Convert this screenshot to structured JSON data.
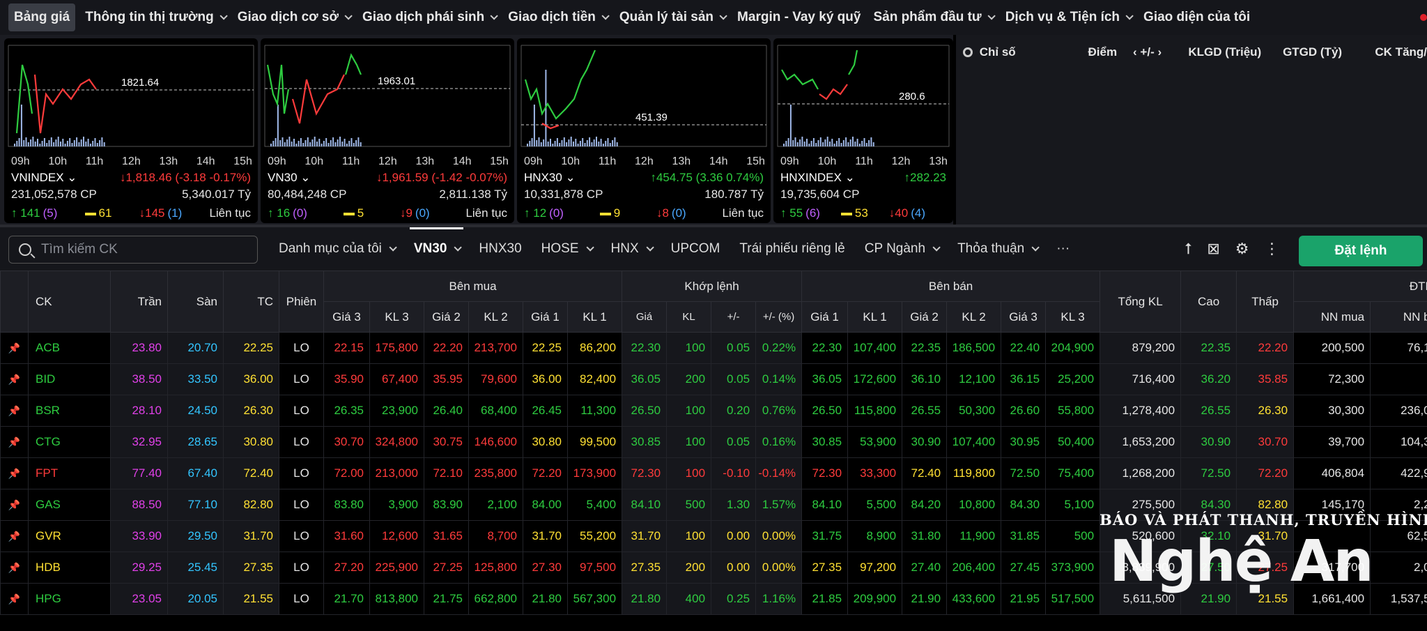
{
  "nav": {
    "items": [
      {
        "label": "Bảng giá",
        "active": true,
        "chevron": false
      },
      {
        "label": "Thông tin thị trường",
        "chevron": true
      },
      {
        "label": "Giao dịch cơ sở",
        "chevron": true
      },
      {
        "label": "Giao dịch phái sinh",
        "chevron": true
      },
      {
        "label": "Giao dịch tiền",
        "chevron": true
      },
      {
        "label": "Quản lý tài sản",
        "chevron": true
      },
      {
        "label": "Margin - Vay ký quỹ",
        "chevron": false
      },
      {
        "label": "Sản phẩm đầu tư",
        "chevron": true
      },
      {
        "label": "Dịch vụ & Tiện ích",
        "chevron": true
      },
      {
        "label": "Giao diện của tôi",
        "chevron": false
      }
    ]
  },
  "indices": [
    {
      "name": "VNINDEX ⌄",
      "ref_label": "1821.64",
      "times": [
        "09h",
        "10h",
        "11h",
        "12h",
        "13h",
        "14h",
        "15h"
      ],
      "change_text": "1,818.46 (-3.18 -0.17%)",
      "direction": "down",
      "volume": "231,052,578 CP",
      "value": "5,340.017 Tỷ",
      "adv": "141",
      "adv_ceil": "(5)",
      "unch": "61",
      "dec": "145",
      "dec_floor": "(1)",
      "status": "Liên tục"
    },
    {
      "name": "VN30 ⌄",
      "ref_label": "1963.01",
      "times": [
        "09h",
        "10h",
        "11h",
        "12h",
        "13h",
        "14h",
        "15h"
      ],
      "change_text": "1,961.59 (-1.42 -0.07%)",
      "direction": "down",
      "volume": "80,484,248 CP",
      "value": "2,811.138 Tỷ",
      "adv": "16",
      "adv_ceil": "(0)",
      "unch": "5",
      "dec": "9",
      "dec_floor": "(0)",
      "status": "Liên tục"
    },
    {
      "name": "HNX30 ⌄",
      "ref_label": "451.39",
      "times": [
        "09h",
        "10h",
        "11h",
        "12h",
        "13h",
        "14h",
        "15h"
      ],
      "change_text": "454.75 (3.36 0.74%)",
      "direction": "up",
      "volume": "10,331,878 CP",
      "value": "180.787 Tỷ",
      "adv": "12",
      "adv_ceil": "(0)",
      "unch": "9",
      "dec": "8",
      "dec_floor": "(0)",
      "status": "Liên tục"
    },
    {
      "name": "HNXINDEX ⌄",
      "ref_label": "280.6",
      "times": [
        "09h",
        "10h",
        "11h",
        "12h",
        "13h"
      ],
      "change_text": "282.23",
      "direction": "up",
      "volume": "19,735,604 CP",
      "value": "",
      "adv": "55",
      "adv_ceil": "(6)",
      "unch": "53",
      "dec": "40",
      "dec_floor": "(4)",
      "status": ""
    }
  ],
  "market_panel": {
    "title": "Chỉ số",
    "cols": [
      "Điểm",
      "‹ +/- ›",
      "KLGD (Triệu)",
      "GTGD (Tỷ)",
      "CK Tăng/"
    ]
  },
  "toolbar": {
    "search_placeholder": "Tìm kiếm CK",
    "tabs": [
      {
        "label": "Danh mục của tôi",
        "chevron": true
      },
      {
        "label": "VN30",
        "chevron": true,
        "active": true
      },
      {
        "label": "HNX30",
        "chevron": false
      },
      {
        "label": "HOSE",
        "chevron": true
      },
      {
        "label": "HNX",
        "chevron": true
      },
      {
        "label": "UPCOM",
        "chevron": false
      },
      {
        "label": "Trái phiếu riêng lẻ",
        "chevron": false
      },
      {
        "label": "CP Ngành",
        "chevron": true
      },
      {
        "label": "Thỏa thuận",
        "chevron": true
      },
      {
        "label": "···",
        "chevron": false
      }
    ],
    "order_label": "Đặt lệnh"
  },
  "board": {
    "headers": {
      "ck": "CK",
      "tran": "Trần",
      "san": "Sàn",
      "tc": "TC",
      "phien": "Phiên",
      "ben_mua": "Bên mua",
      "khop_lenh": "Khớp lệnh",
      "ben_ban": "Bên bán",
      "tong_kl": "Tổng KL",
      "cao": "Cao",
      "thap": "Thấp",
      "dtnn": "ĐTNN",
      "buy_cols": [
        "Giá 3",
        "KL 3",
        "Giá 2",
        "KL 2",
        "Giá 1",
        "KL 1"
      ],
      "match_cols": [
        "Giá",
        "KL",
        "+/-",
        "+/- (%)"
      ],
      "sell_cols": [
        "Giá 1",
        "KL 1",
        "Giá 2",
        "KL 2",
        "Giá 3",
        "KL 3"
      ],
      "nn_cols": [
        "NN mua",
        "NN bá"
      ]
    },
    "rows": [
      {
        "ck": "ACB",
        "c": "up",
        "tran": "23.80",
        "san": "20.70",
        "tc": "22.25",
        "phien": "LO",
        "buy": [
          [
            "22.15",
            "down"
          ],
          [
            "175,800",
            "down"
          ],
          [
            "22.20",
            "down"
          ],
          [
            "213,700",
            "down"
          ],
          [
            "22.25",
            "ref"
          ],
          [
            "86,200",
            "ref"
          ]
        ],
        "match": [
          [
            "22.30",
            "up"
          ],
          [
            "100",
            "up"
          ],
          [
            "0.05",
            "up"
          ],
          [
            "0.22%",
            "up"
          ]
        ],
        "sell": [
          [
            "22.30",
            "up"
          ],
          [
            "107,400",
            "up"
          ],
          [
            "22.35",
            "up"
          ],
          [
            "186,500",
            "up"
          ],
          [
            "22.40",
            "up"
          ],
          [
            "204,900",
            "up"
          ]
        ],
        "tong": "879,200",
        "cao": [
          "22.35",
          "up"
        ],
        "thap": [
          "22.20",
          "down"
        ],
        "nn": [
          "200,500",
          "76,10"
        ]
      },
      {
        "ck": "BID",
        "c": "up",
        "tran": "38.50",
        "san": "33.50",
        "tc": "36.00",
        "phien": "LO",
        "buy": [
          [
            "35.90",
            "down"
          ],
          [
            "67,400",
            "down"
          ],
          [
            "35.95",
            "down"
          ],
          [
            "79,600",
            "down"
          ],
          [
            "36.00",
            "ref"
          ],
          [
            "82,400",
            "ref"
          ]
        ],
        "match": [
          [
            "36.05",
            "up"
          ],
          [
            "200",
            "up"
          ],
          [
            "0.05",
            "up"
          ],
          [
            "0.14%",
            "up"
          ]
        ],
        "sell": [
          [
            "36.05",
            "up"
          ],
          [
            "172,600",
            "up"
          ],
          [
            "36.10",
            "up"
          ],
          [
            "12,100",
            "up"
          ],
          [
            "36.15",
            "up"
          ],
          [
            "25,200",
            "up"
          ]
        ],
        "tong": "716,400",
        "cao": [
          "36.20",
          "up"
        ],
        "thap": [
          "35.85",
          "down"
        ],
        "nn": [
          "72,300",
          ""
        ]
      },
      {
        "ck": "BSR",
        "c": "up",
        "tran": "28.10",
        "san": "24.50",
        "tc": "26.30",
        "phien": "LO",
        "buy": [
          [
            "26.35",
            "up"
          ],
          [
            "23,900",
            "up"
          ],
          [
            "26.40",
            "up"
          ],
          [
            "68,400",
            "up"
          ],
          [
            "26.45",
            "up"
          ],
          [
            "11,300",
            "up"
          ]
        ],
        "match": [
          [
            "26.50",
            "up"
          ],
          [
            "100",
            "up"
          ],
          [
            "0.20",
            "up"
          ],
          [
            "0.76%",
            "up"
          ]
        ],
        "sell": [
          [
            "26.50",
            "up"
          ],
          [
            "115,800",
            "up"
          ],
          [
            "26.55",
            "up"
          ],
          [
            "50,300",
            "up"
          ],
          [
            "26.60",
            "up"
          ],
          [
            "55,800",
            "up"
          ]
        ],
        "tong": "1,278,400",
        "cao": [
          "26.55",
          "up"
        ],
        "thap": [
          "26.30",
          "ref"
        ],
        "nn": [
          "30,300",
          "236,00"
        ]
      },
      {
        "ck": "CTG",
        "c": "up",
        "tran": "32.95",
        "san": "28.65",
        "tc": "30.80",
        "phien": "LO",
        "buy": [
          [
            "30.70",
            "down"
          ],
          [
            "324,800",
            "down"
          ],
          [
            "30.75",
            "down"
          ],
          [
            "146,600",
            "down"
          ],
          [
            "30.80",
            "ref"
          ],
          [
            "99,500",
            "ref"
          ]
        ],
        "match": [
          [
            "30.85",
            "up"
          ],
          [
            "100",
            "up"
          ],
          [
            "0.05",
            "up"
          ],
          [
            "0.16%",
            "up"
          ]
        ],
        "sell": [
          [
            "30.85",
            "up"
          ],
          [
            "53,900",
            "up"
          ],
          [
            "30.90",
            "up"
          ],
          [
            "107,400",
            "up"
          ],
          [
            "30.95",
            "up"
          ],
          [
            "50,400",
            "up"
          ]
        ],
        "tong": "1,653,200",
        "cao": [
          "30.90",
          "up"
        ],
        "thap": [
          "30.70",
          "down"
        ],
        "nn": [
          "39,700",
          "104,32"
        ]
      },
      {
        "ck": "FPT",
        "c": "down",
        "tran": "77.40",
        "san": "67.40",
        "tc": "72.40",
        "phien": "LO",
        "buy": [
          [
            "72.00",
            "down"
          ],
          [
            "213,000",
            "down"
          ],
          [
            "72.10",
            "down"
          ],
          [
            "235,800",
            "down"
          ],
          [
            "72.20",
            "down"
          ],
          [
            "173,900",
            "down"
          ]
        ],
        "match": [
          [
            "72.30",
            "down"
          ],
          [
            "100",
            "down"
          ],
          [
            "-0.10",
            "down"
          ],
          [
            "-0.14%",
            "down"
          ]
        ],
        "sell": [
          [
            "72.30",
            "down"
          ],
          [
            "33,300",
            "down"
          ],
          [
            "72.40",
            "ref"
          ],
          [
            "119,800",
            "ref"
          ],
          [
            "72.50",
            "up"
          ],
          [
            "75,400",
            "up"
          ]
        ],
        "tong": "1,268,200",
        "cao": [
          "72.50",
          "up"
        ],
        "thap": [
          "72.20",
          "down"
        ],
        "nn": [
          "406,804",
          "422,90"
        ]
      },
      {
        "ck": "GAS",
        "c": "up",
        "tran": "88.50",
        "san": "77.10",
        "tc": "82.80",
        "phien": "LO",
        "buy": [
          [
            "83.80",
            "up"
          ],
          [
            "3,900",
            "up"
          ],
          [
            "83.90",
            "up"
          ],
          [
            "2,100",
            "up"
          ],
          [
            "84.00",
            "up"
          ],
          [
            "5,400",
            "up"
          ]
        ],
        "match": [
          [
            "84.10",
            "up"
          ],
          [
            "500",
            "up"
          ],
          [
            "1.30",
            "up"
          ],
          [
            "1.57%",
            "up"
          ]
        ],
        "sell": [
          [
            "84.10",
            "up"
          ],
          [
            "5,500",
            "up"
          ],
          [
            "84.20",
            "up"
          ],
          [
            "10,800",
            "up"
          ],
          [
            "84.30",
            "up"
          ],
          [
            "5,100",
            "up"
          ]
        ],
        "tong": "275,500",
        "cao": [
          "84.30",
          "up"
        ],
        "thap": [
          "82.80",
          "ref"
        ],
        "nn": [
          "145,170",
          "2,20"
        ]
      },
      {
        "ck": "GVR",
        "c": "ref",
        "tran": "33.90",
        "san": "29.50",
        "tc": "31.70",
        "phien": "LO",
        "buy": [
          [
            "31.60",
            "down"
          ],
          [
            "12,600",
            "down"
          ],
          [
            "31.65",
            "down"
          ],
          [
            "8,700",
            "down"
          ],
          [
            "31.70",
            "ref"
          ],
          [
            "55,200",
            "ref"
          ]
        ],
        "match": [
          [
            "31.70",
            "ref"
          ],
          [
            "100",
            "ref"
          ],
          [
            "0.00",
            "ref"
          ],
          [
            "0.00%",
            "ref"
          ]
        ],
        "sell": [
          [
            "31.75",
            "up"
          ],
          [
            "8,900",
            "up"
          ],
          [
            "31.80",
            "up"
          ],
          [
            "11,900",
            "up"
          ],
          [
            "31.85",
            "up"
          ],
          [
            "500",
            "up"
          ]
        ],
        "tong": "520,600",
        "cao": [
          "32.10",
          "up"
        ],
        "thap": [
          "31.70",
          "ref"
        ],
        "nn": [
          "",
          "62,50"
        ]
      },
      {
        "ck": "HDB",
        "c": "ref",
        "tran": "29.25",
        "san": "25.45",
        "tc": "27.35",
        "phien": "LO",
        "buy": [
          [
            "27.20",
            "down"
          ],
          [
            "225,900",
            "down"
          ],
          [
            "27.25",
            "down"
          ],
          [
            "125,800",
            "down"
          ],
          [
            "27.30",
            "down"
          ],
          [
            "97,500",
            "down"
          ]
        ],
        "match": [
          [
            "27.35",
            "ref"
          ],
          [
            "200",
            "ref"
          ],
          [
            "0.00",
            "ref"
          ],
          [
            "0.00%",
            "ref"
          ]
        ],
        "sell": [
          [
            "27.35",
            "ref"
          ],
          [
            "97,200",
            "ref"
          ],
          [
            "27.40",
            "up"
          ],
          [
            "206,400",
            "up"
          ],
          [
            "27.45",
            "up"
          ],
          [
            "373,900",
            "up"
          ]
        ],
        "tong": "3,839,900",
        "cao": [
          "27.50",
          "up"
        ],
        "thap": [
          "27.25",
          "down"
        ],
        "nn": [
          "317,700",
          "2,00"
        ]
      },
      {
        "ck": "HPG",
        "c": "up",
        "tran": "23.05",
        "san": "20.05",
        "tc": "21.55",
        "phien": "LO",
        "buy": [
          [
            "21.70",
            "up"
          ],
          [
            "813,800",
            "up"
          ],
          [
            "21.75",
            "up"
          ],
          [
            "662,800",
            "up"
          ],
          [
            "21.80",
            "up"
          ],
          [
            "567,300",
            "up"
          ]
        ],
        "match": [
          [
            "21.80",
            "up"
          ],
          [
            "400",
            "up"
          ],
          [
            "0.25",
            "up"
          ],
          [
            "1.16%",
            "up"
          ]
        ],
        "sell": [
          [
            "21.85",
            "up"
          ],
          [
            "209,900",
            "up"
          ],
          [
            "21.90",
            "up"
          ],
          [
            "433,600",
            "up"
          ],
          [
            "21.95",
            "up"
          ],
          [
            "517,500",
            "up"
          ]
        ],
        "tong": "5,611,500",
        "cao": [
          "21.90",
          "up"
        ],
        "thap": [
          "21.55",
          "ref"
        ],
        "nn": [
          "1,661,400",
          "1,537,50"
        ]
      }
    ]
  },
  "watermark": {
    "top": "BÁO VÀ PHÁT THANH, TRUYỀN HÌNH",
    "main": "Nghệ An"
  },
  "colors": {
    "up": "#2ecc40",
    "down": "#ff3b3b",
    "ref": "#ffe033",
    "ceil": "#e040e8",
    "floor": "#33c5ff",
    "buy_button": "#1aa36a"
  }
}
